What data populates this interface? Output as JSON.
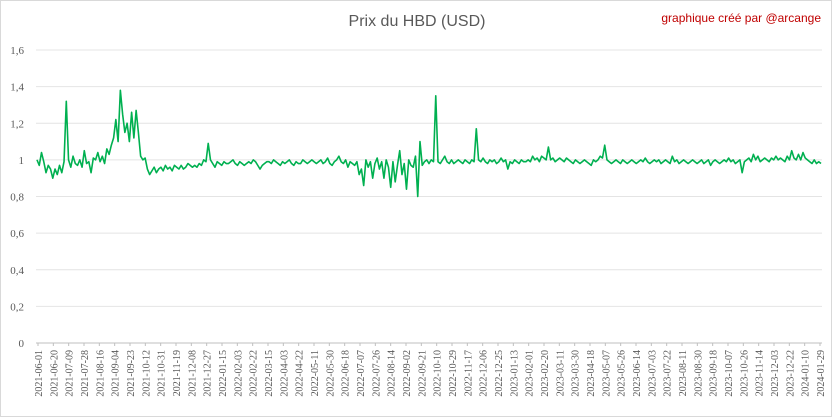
{
  "chart_data": {
    "type": "line",
    "title": "Prix du HBD (USD)",
    "credit": "graphique créé par @arcange",
    "xlabel": "",
    "ylabel": "",
    "ylim": [
      0,
      1.6
    ],
    "y_ticks": [
      "0",
      "0,2",
      "0,4",
      "0,6",
      "0,8",
      "1",
      "1,2",
      "1,4",
      "1,6"
    ],
    "grid": "horizontal",
    "legend": "none",
    "series_color": "#00b050",
    "x_ticks": [
      "2021-06-01",
      "2021-06-20",
      "2021-07-09",
      "2021-07-28",
      "2021-08-16",
      "2021-09-04",
      "2021-09-23",
      "2021-10-12",
      "2021-10-31",
      "2021-11-19",
      "2021-12-08",
      "2021-12-27",
      "2022-01-15",
      "2022-02-03",
      "2022-02-22",
      "2022-03-15",
      "2022-04-03",
      "2022-04-22",
      "2022-05-11",
      "2022-05-30",
      "2022-06-18",
      "2022-07-07",
      "2022-07-26",
      "2022-08-14",
      "2022-09-02",
      "2022-09-21",
      "2022-10-10",
      "2022-10-29",
      "2022-11-17",
      "2022-12-06",
      "2022-12-25",
      "2023-01-13",
      "2023-02-01",
      "2023-02-20",
      "2023-03-11",
      "2023-03-30",
      "2023-04-18",
      "2023-05-07",
      "2023-05-26",
      "2023-06-14",
      "2023-07-03",
      "2023-07-22",
      "2023-08-11",
      "2023-08-30",
      "2023-09-18",
      "2023-10-07",
      "2023-10-26",
      "2023-11-14",
      "2023-12-03",
      "2023-12-22",
      "2024-01-10",
      "2024-01-29"
    ],
    "series": [
      {
        "values": [
          1.0,
          0.97,
          1.04,
          0.99,
          0.93,
          0.97,
          0.95,
          0.9,
          0.95,
          0.92,
          0.97,
          0.93,
          0.99,
          1.32,
          1.0,
          0.96,
          1.02,
          0.98,
          0.97,
          1.0,
          0.96,
          1.05,
          0.98,
          0.99,
          0.93,
          1.01,
          1.0,
          1.04,
          0.99,
          1.02,
          0.98,
          1.06,
          1.03,
          1.08,
          1.12,
          1.22,
          1.1,
          1.38,
          1.25,
          1.15,
          1.2,
          1.1,
          1.26,
          1.12,
          1.27,
          1.15,
          1.02,
          1.0,
          1.01,
          0.95,
          0.92,
          0.94,
          0.96,
          0.93,
          0.95,
          0.96,
          0.94,
          0.97,
          0.95,
          0.96,
          0.94,
          0.97,
          0.96,
          0.95,
          0.97,
          0.95,
          0.96,
          0.98,
          0.97,
          0.96,
          0.97,
          0.96,
          0.98,
          0.97,
          1.0,
          0.99,
          1.09,
          1.0,
          0.98,
          0.96,
          0.99,
          0.98,
          0.97,
          0.99,
          0.98,
          0.98,
          0.99,
          1.0,
          0.98,
          0.97,
          0.99,
          0.98,
          0.97,
          0.98,
          0.99,
          0.98,
          1.0,
          0.99,
          0.97,
          0.95,
          0.97,
          0.98,
          0.99,
          0.99,
          0.98,
          1.0,
          0.99,
          0.98,
          0.97,
          0.99,
          0.98,
          0.99,
          1.0,
          0.98,
          0.97,
          0.99,
          0.98,
          0.98,
          1.0,
          0.99,
          0.98,
          0.99,
          1.0,
          0.99,
          0.98,
          0.99,
          1.0,
          0.98,
          0.99,
          1.01,
          0.98,
          0.97,
          0.99,
          1.0,
          1.02,
          0.99,
          0.98,
          1.0,
          0.96,
          0.99,
          0.98,
          0.97,
          0.99,
          0.92,
          0.95,
          0.86,
          1.0,
          0.96,
          0.99,
          0.9,
          0.98,
          1.01,
          0.95,
          0.99,
          0.9,
          1.0,
          0.96,
          0.85,
          0.99,
          0.88,
          0.97,
          1.05,
          0.92,
          0.98,
          0.84,
          1.0,
          0.97,
          0.96,
          1.02,
          0.8,
          1.1,
          0.97,
          0.99,
          1.0,
          0.98,
          1.0,
          0.99,
          1.35,
          0.99,
          0.98,
          1.0,
          1.02,
          0.99,
          0.98,
          1.0,
          0.98,
          0.99,
          1.0,
          0.99,
          0.98,
          1.0,
          0.99,
          0.98,
          1.0,
          0.99,
          1.17,
          1.0,
          0.99,
          1.01,
          0.99,
          0.98,
          1.0,
          0.99,
          1.0,
          0.98,
          0.99,
          1.01,
          0.99,
          1.0,
          0.95,
          0.99,
          0.98,
          1.0,
          0.99,
          0.98,
          1.0,
          0.99,
          0.99,
          1.0,
          0.99,
          1.02,
          1.0,
          1.01,
          0.99,
          1.02,
          1.01,
          1.0,
          1.07,
          1.0,
          1.01,
          0.99,
          1.0,
          1.01,
          1.0,
          0.99,
          1.01,
          1.0,
          0.99,
          0.98,
          1.0,
          0.99,
          0.98,
          0.99,
          1.0,
          0.99,
          0.98,
          0.97,
          1.0,
          0.99,
          1.0,
          1.02,
          1.01,
          1.08,
          1.0,
          0.99,
          0.98,
          0.99,
          1.0,
          0.99,
          0.98,
          1.0,
          0.99,
          0.98,
          0.99,
          1.0,
          0.99,
          0.98,
          0.99,
          1.0,
          0.99,
          1.01,
          0.99,
          0.98,
          0.99,
          1.0,
          0.99,
          1.0,
          0.98,
          0.99,
          1.0,
          0.99,
          0.98,
          1.02,
          0.99,
          1.0,
          0.98,
          0.99,
          1.0,
          0.99,
          0.98,
          0.99,
          1.0,
          0.99,
          0.98,
          0.99,
          1.0,
          0.98,
          0.99,
          1.0,
          0.97,
          0.99,
          1.0,
          0.99,
          0.98,
          0.99,
          1.0,
          0.99,
          1.01,
          0.99,
          1.0,
          0.98,
          0.99,
          1.0,
          0.93,
          0.99,
          1.0,
          1.01,
          0.99,
          1.03,
          1.0,
          1.02,
          0.99,
          1.0,
          1.01,
          1.0,
          0.99,
          1.01,
          1.0,
          1.02,
          1.0,
          1.01,
          1.0,
          0.99,
          1.02,
          1.0,
          1.05,
          1.01,
          1.0,
          1.03,
          1.0,
          1.04,
          1.01,
          1.0,
          0.99,
          0.98,
          1.0,
          0.98,
          0.99,
          0.98
        ]
      }
    ]
  }
}
